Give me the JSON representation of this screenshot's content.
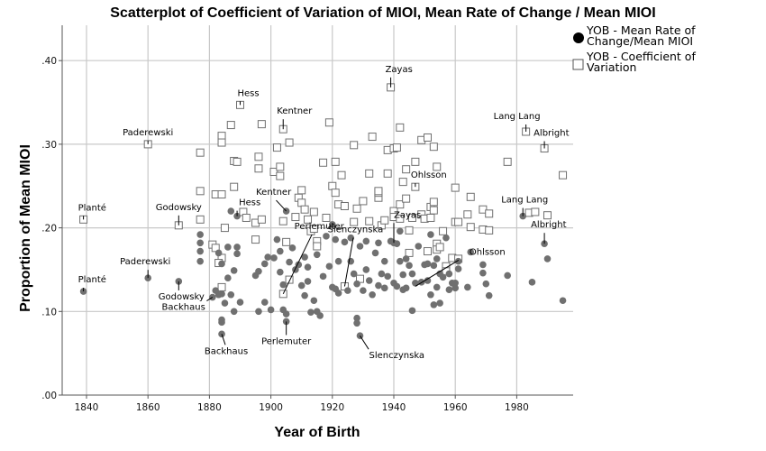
{
  "chart_data": {
    "type": "scatter",
    "title": "Scatterplot of Coefficient of Variation of MIOI,  Mean Rate of Change / Mean MIOI",
    "xlabel": "Year of Birth",
    "ylabel": "Proportion of Mean MIOI",
    "xlim": [
      1832,
      1998
    ],
    "ylim": [
      0,
      0.44
    ],
    "xticks": [
      1840,
      1860,
      1880,
      1900,
      1920,
      1940,
      1960,
      1980
    ],
    "xtick_labels": [
      "1840",
      "1860",
      "1880",
      "1900",
      "1920",
      "1940",
      "1960",
      "1980"
    ],
    "yticks": [
      0,
      0.1,
      0.2,
      0.3,
      0.4
    ],
    "ytick_labels": [
      ".00",
      ".10",
      ".20",
      ".30",
      ".40"
    ],
    "grid": true,
    "legend_position": "top-right",
    "series": [
      {
        "name": "YOB  - Mean Rate of Change/Mean MIOI",
        "legend_label_lines": [
          "YOB  - Mean Rate of",
          "Change/Mean MIOI"
        ],
        "marker": "filled-circle",
        "color": "#707070",
        "points": [
          [
            1839,
            0.124
          ],
          [
            1860,
            0.14
          ],
          [
            1870,
            0.136
          ],
          [
            1877,
            0.192
          ],
          [
            1877,
            0.182
          ],
          [
            1877,
            0.172
          ],
          [
            1877,
            0.16
          ],
          [
            1881,
            0.117
          ],
          [
            1882,
            0.125
          ],
          [
            1883,
            0.12
          ],
          [
            1884,
            0.121
          ],
          [
            1885,
            0.11
          ],
          [
            1884,
            0.09
          ],
          [
            1884,
            0.087
          ],
          [
            1884,
            0.073
          ],
          [
            1883,
            0.17
          ],
          [
            1884,
            0.157
          ],
          [
            1886,
            0.14
          ],
          [
            1887,
            0.12
          ],
          [
            1888,
            0.1
          ],
          [
            1886,
            0.177
          ],
          [
            1889,
            0.169
          ],
          [
            1889,
            0.177
          ],
          [
            1888,
            0.149
          ],
          [
            1887,
            0.22
          ],
          [
            1889,
            0.214
          ],
          [
            1890,
            0.111
          ],
          [
            1895,
            0.143
          ],
          [
            1896,
            0.148
          ],
          [
            1896,
            0.1
          ],
          [
            1898,
            0.111
          ],
          [
            1898,
            0.157
          ],
          [
            1899,
            0.165
          ],
          [
            1900,
            0.102
          ],
          [
            1901,
            0.164
          ],
          [
            1902,
            0.186
          ],
          [
            1903,
            0.172
          ],
          [
            1903,
            0.147
          ],
          [
            1904,
            0.132
          ],
          [
            1904,
            0.102
          ],
          [
            1905,
            0.097
          ],
          [
            1905,
            0.088
          ],
          [
            1905,
            0.22
          ],
          [
            1906,
            0.159
          ],
          [
            1907,
            0.176
          ],
          [
            1908,
            0.15
          ],
          [
            1909,
            0.156
          ],
          [
            1910,
            0.131
          ],
          [
            1911,
            0.165
          ],
          [
            1911,
            0.119
          ],
          [
            1912,
            0.153
          ],
          [
            1912,
            0.136
          ],
          [
            1913,
            0.099
          ],
          [
            1914,
            0.113
          ],
          [
            1915,
            0.168
          ],
          [
            1915,
            0.1
          ],
          [
            1916,
            0.095
          ],
          [
            1917,
            0.142
          ],
          [
            1918,
            0.19
          ],
          [
            1919,
            0.154
          ],
          [
            1920,
            0.204
          ],
          [
            1920,
            0.129
          ],
          [
            1921,
            0.127
          ],
          [
            1921,
            0.186
          ],
          [
            1922,
            0.16
          ],
          [
            1922,
            0.122
          ],
          [
            1924,
            0.183
          ],
          [
            1925,
            0.125
          ],
          [
            1926,
            0.188
          ],
          [
            1926,
            0.16
          ],
          [
            1927,
            0.145
          ],
          [
            1928,
            0.133
          ],
          [
            1928,
            0.092
          ],
          [
            1928,
            0.086
          ],
          [
            1929,
            0.178
          ],
          [
            1930,
            0.125
          ],
          [
            1929,
            0.071
          ],
          [
            1931,
            0.184
          ],
          [
            1931,
            0.15
          ],
          [
            1932,
            0.137
          ],
          [
            1933,
            0.12
          ],
          [
            1934,
            0.17
          ],
          [
            1935,
            0.182
          ],
          [
            1935,
            0.131
          ],
          [
            1936,
            0.145
          ],
          [
            1937,
            0.16
          ],
          [
            1937,
            0.128
          ],
          [
            1938,
            0.142
          ],
          [
            1939,
            0.184
          ],
          [
            1940,
            0.182
          ],
          [
            1940,
            0.134
          ],
          [
            1941,
            0.181
          ],
          [
            1941,
            0.13
          ],
          [
            1942,
            0.16
          ],
          [
            1942,
            0.196
          ],
          [
            1943,
            0.126
          ],
          [
            1943,
            0.144
          ],
          [
            1944,
            0.163
          ],
          [
            1944,
            0.128
          ],
          [
            1945,
            0.155
          ],
          [
            1946,
            0.145
          ],
          [
            1946,
            0.101
          ],
          [
            1947,
            0.134
          ],
          [
            1948,
            0.178
          ],
          [
            1949,
            0.135
          ],
          [
            1950,
            0.156
          ],
          [
            1951,
            0.157
          ],
          [
            1951,
            0.137
          ],
          [
            1952,
            0.192
          ],
          [
            1952,
            0.12
          ],
          [
            1953,
            0.155
          ],
          [
            1953,
            0.108
          ],
          [
            1954,
            0.129
          ],
          [
            1954,
            0.163
          ],
          [
            1955,
            0.145
          ],
          [
            1955,
            0.11
          ],
          [
            1956,
            0.141
          ],
          [
            1957,
            0.188
          ],
          [
            1958,
            0.126
          ],
          [
            1958,
            0.145
          ],
          [
            1959,
            0.134
          ],
          [
            1960,
            0.134
          ],
          [
            1960,
            0.128
          ],
          [
            1961,
            0.151
          ],
          [
            1961,
            0.16
          ],
          [
            1964,
            0.129
          ],
          [
            1965,
            0.171
          ],
          [
            1969,
            0.156
          ],
          [
            1969,
            0.146
          ],
          [
            1970,
            0.133
          ],
          [
            1971,
            0.119
          ],
          [
            1977,
            0.143
          ],
          [
            1982,
            0.214
          ],
          [
            1985,
            0.135
          ],
          [
            1989,
            0.181
          ],
          [
            1990,
            0.163
          ],
          [
            1995,
            0.113
          ]
        ]
      },
      {
        "name": "YOB  - Coefficient of Variation",
        "legend_label_lines": [
          "YOB  - Coefficient of",
          "Variation"
        ],
        "marker": "hollow-square",
        "color": "#707070",
        "points": [
          [
            1839,
            0.21
          ],
          [
            1860,
            0.3
          ],
          [
            1870,
            0.203
          ],
          [
            1877,
            0.29
          ],
          [
            1877,
            0.244
          ],
          [
            1877,
            0.21
          ],
          [
            1881,
            0.18
          ],
          [
            1882,
            0.176
          ],
          [
            1882,
            0.24
          ],
          [
            1884,
            0.24
          ],
          [
            1884,
            0.31
          ],
          [
            1884,
            0.302
          ],
          [
            1884,
            0.164
          ],
          [
            1883,
            0.158
          ],
          [
            1884,
            0.129
          ],
          [
            1885,
            0.2
          ],
          [
            1887,
            0.323
          ],
          [
            1888,
            0.28
          ],
          [
            1889,
            0.279
          ],
          [
            1888,
            0.249
          ],
          [
            1890,
            0.347
          ],
          [
            1891,
            0.219
          ],
          [
            1892,
            0.212
          ],
          [
            1895,
            0.206
          ],
          [
            1895,
            0.186
          ],
          [
            1896,
            0.285
          ],
          [
            1896,
            0.271
          ],
          [
            1897,
            0.324
          ],
          [
            1897,
            0.21
          ],
          [
            1901,
            0.267
          ],
          [
            1902,
            0.296
          ],
          [
            1903,
            0.273
          ],
          [
            1903,
            0.262
          ],
          [
            1904,
            0.318
          ],
          [
            1904,
            0.208
          ],
          [
            1905,
            0.183
          ],
          [
            1906,
            0.302
          ],
          [
            1904,
            0.121
          ],
          [
            1906,
            0.138
          ],
          [
            1908,
            0.213
          ],
          [
            1909,
            0.236
          ],
          [
            1910,
            0.245
          ],
          [
            1910,
            0.23
          ],
          [
            1911,
            0.222
          ],
          [
            1912,
            0.21
          ],
          [
            1913,
            0.196
          ],
          [
            1914,
            0.199
          ],
          [
            1914,
            0.219
          ],
          [
            1915,
            0.184
          ],
          [
            1915,
            0.178
          ],
          [
            1917,
            0.278
          ],
          [
            1918,
            0.212
          ],
          [
            1919,
            0.326
          ],
          [
            1920,
            0.25
          ],
          [
            1921,
            0.279
          ],
          [
            1921,
            0.242
          ],
          [
            1922,
            0.228
          ],
          [
            1923,
            0.263
          ],
          [
            1924,
            0.226
          ],
          [
            1924,
            0.13
          ],
          [
            1927,
            0.299
          ],
          [
            1927,
            0.207
          ],
          [
            1928,
            0.223
          ],
          [
            1929,
            0.139
          ],
          [
            1930,
            0.232
          ],
          [
            1932,
            0.265
          ],
          [
            1932,
            0.208
          ],
          [
            1933,
            0.309
          ],
          [
            1935,
            0.236
          ],
          [
            1935,
            0.242
          ],
          [
            1935,
            0.244
          ],
          [
            1936,
            0.203
          ],
          [
            1937,
            0.209
          ],
          [
            1938,
            0.265
          ],
          [
            1938,
            0.293
          ],
          [
            1939,
            0.368
          ],
          [
            1940,
            0.295
          ],
          [
            1940,
            0.22
          ],
          [
            1940,
            0.213
          ],
          [
            1941,
            0.296
          ],
          [
            1942,
            0.32
          ],
          [
            1942,
            0.228
          ],
          [
            1942,
            0.211
          ],
          [
            1943,
            0.255
          ],
          [
            1944,
            0.27
          ],
          [
            1944,
            0.235
          ],
          [
            1945,
            0.197
          ],
          [
            1945,
            0.17
          ],
          [
            1946,
            0.212
          ],
          [
            1947,
            0.279
          ],
          [
            1947,
            0.249
          ],
          [
            1949,
            0.305
          ],
          [
            1949,
            0.216
          ],
          [
            1950,
            0.211
          ],
          [
            1951,
            0.308
          ],
          [
            1951,
            0.172
          ],
          [
            1952,
            0.225
          ],
          [
            1952,
            0.212
          ],
          [
            1953,
            0.297
          ],
          [
            1953,
            0.221
          ],
          [
            1953,
            0.231
          ],
          [
            1954,
            0.273
          ],
          [
            1954,
            0.181
          ],
          [
            1954,
            0.174
          ],
          [
            1955,
            0.177
          ],
          [
            1956,
            0.196
          ],
          [
            1957,
            0.154
          ],
          [
            1957,
            0.148
          ],
          [
            1959,
            0.164
          ],
          [
            1960,
            0.248
          ],
          [
            1960,
            0.207
          ],
          [
            1961,
            0.207
          ],
          [
            1961,
            0.163
          ],
          [
            1964,
            0.216
          ],
          [
            1965,
            0.237
          ],
          [
            1965,
            0.201
          ],
          [
            1969,
            0.222
          ],
          [
            1969,
            0.198
          ],
          [
            1971,
            0.197
          ],
          [
            1971,
            0.217
          ],
          [
            1977,
            0.279
          ],
          [
            1983,
            0.315
          ],
          [
            1984,
            0.218
          ],
          [
            1986,
            0.219
          ],
          [
            1989,
            0.295
          ],
          [
            1990,
            0.215
          ],
          [
            1995,
            0.263
          ]
        ]
      }
    ],
    "annotations": [
      {
        "text": "Planté",
        "series": 1,
        "x": 1839,
        "y": 0.21
      },
      {
        "text": "Paderewski",
        "series": 1,
        "x": 1860,
        "y": 0.3
      },
      {
        "text": "Godowsky",
        "series": 1,
        "x": 1870,
        "y": 0.203
      },
      {
        "text": "Hess",
        "series": 1,
        "x": 1890,
        "y": 0.347
      },
      {
        "text": "Kentner",
        "series": 1,
        "x": 1904,
        "y": 0.318
      },
      {
        "text": "Zayas",
        "series": 1,
        "x": 1939,
        "y": 0.368
      },
      {
        "text": "Ohlsson",
        "series": 1,
        "x": 1947,
        "y": 0.249
      },
      {
        "text": "Lang Lang",
        "series": 1,
        "x": 1983,
        "y": 0.315
      },
      {
        "text": "Albright",
        "series": 1,
        "x": 1989,
        "y": 0.295
      },
      {
        "text": "Perlemuter",
        "series": 1,
        "x": 1904,
        "y": 0.121
      },
      {
        "text": "Slenczynska",
        "series": 1,
        "x": 1924,
        "y": 0.13
      },
      {
        "text": "Planté",
        "series": 0,
        "x": 1839,
        "y": 0.124
      },
      {
        "text": "Paderewski",
        "series": 0,
        "x": 1860,
        "y": 0.14
      },
      {
        "text": "Godowsky",
        "series": 0,
        "x": 1870,
        "y": 0.136
      },
      {
        "text": "Backhaus",
        "series": 0,
        "x": 1881,
        "y": 0.117
      },
      {
        "text": "Backhaus",
        "series": 0,
        "x": 1884,
        "y": 0.073
      },
      {
        "text": "Hess",
        "series": 0,
        "x": 1889,
        "y": 0.214
      },
      {
        "text": "Kentner",
        "series": 0,
        "x": 1905,
        "y": 0.22
      },
      {
        "text": "Perlemuter",
        "series": 0,
        "x": 1905,
        "y": 0.088
      },
      {
        "text": "Zayas",
        "series": 0,
        "x": 1940,
        "y": 0.182
      },
      {
        "text": "Slenczynska",
        "series": 0,
        "x": 1929,
        "y": 0.071
      },
      {
        "text": "Ohlsson",
        "series": 0,
        "x": 1947,
        "y": 0.13
      },
      {
        "text": "Lang Lang",
        "series": 0,
        "x": 1982,
        "y": 0.214
      },
      {
        "text": "Albright",
        "series": 0,
        "x": 1989,
        "y": 0.181
      }
    ]
  }
}
